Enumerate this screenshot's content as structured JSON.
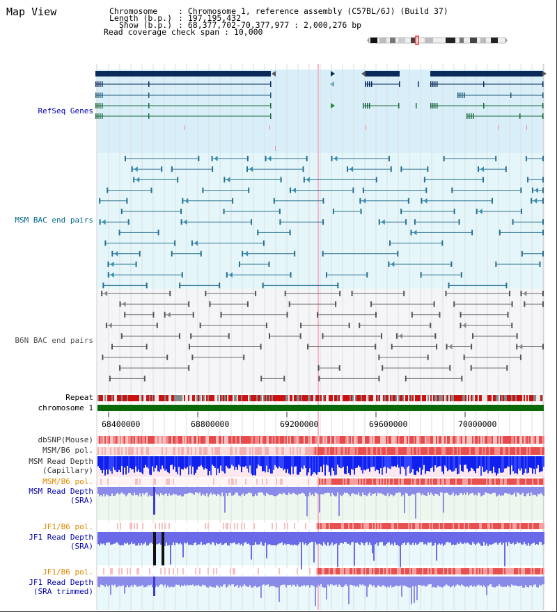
{
  "page": {
    "title": "Map View"
  },
  "header": {
    "chromosome_label": "Chromosome",
    "chromosome_value": ": Chromosome 1, reference assembly (C57BL/6J) (Build 37)",
    "length_label": "Length (b.p.)",
    "length_value": ": 197,195,432",
    "show_label": "Show (b.p.)",
    "show_value": ": 68,377,702-70,377,977 : 2,000,276 bp",
    "read_coverage": "Read coverage check span : 10,000"
  },
  "tracks": {
    "refseq": "RefSeq Genes",
    "msm_bac": "MSM BAC end pairs",
    "b6n_bac": "B6N BAC end pairs",
    "repeat": "Repeat",
    "chromosome": "chromosome 1",
    "dbsnp": "dbSNP(Mouse)",
    "msm_b6_pol_1": "MSM/B6 pol.",
    "msm_read_depth_cap_1": "MSM Read Depth",
    "msm_read_depth_cap_2": "(Capillary)",
    "msm_b6_pol_2": "MSM/B6 pol.",
    "msm_read_depth_sra_1": "MSM Read Depth",
    "msm_read_depth_sra_2": "(SRA)",
    "jf1_b6_pol_1": "JF1/B6 pol.",
    "jf1_read_depth_sra_1": "JF1 Read Depth",
    "jf1_read_depth_sra_2": "(SRA)",
    "jf1_b6_pol_2": "JF1/B6 pol.",
    "jf1_read_depth_trim_1": "JF1 Read Depth",
    "jf1_read_depth_trim_2": "(SRA trimmed)"
  },
  "axis": {
    "ticks": [
      "68400000",
      "68800000",
      "69200000",
      "69600000",
      "70000000"
    ]
  },
  "colors": {
    "navy": "#00205a",
    "blue": "#0000aa",
    "teal": "#006688",
    "orange": "#e08800",
    "green": "#006600",
    "red": "#cc0000"
  }
}
